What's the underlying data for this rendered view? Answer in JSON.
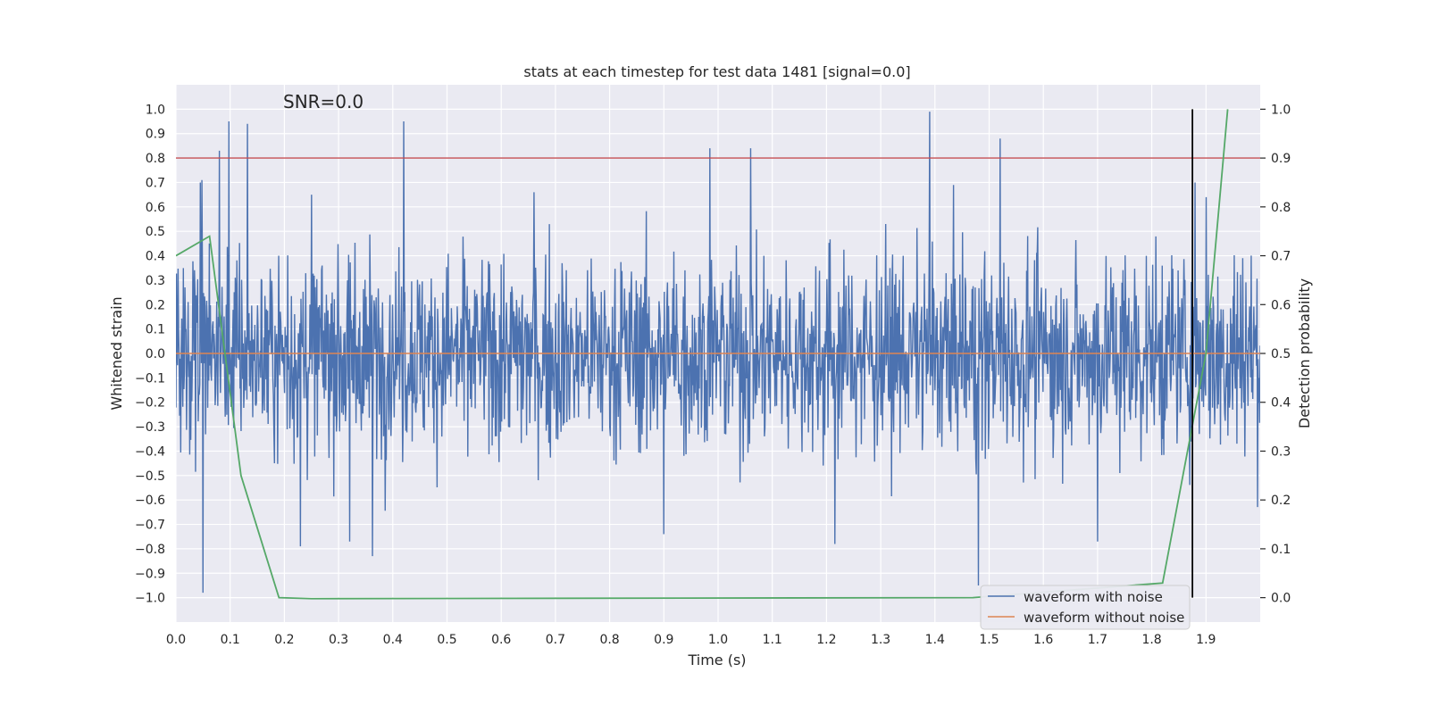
{
  "chart_data": {
    "type": "line",
    "title": "stats at each timestep for test data 1481 [signal=0.0]",
    "annotation": "SNR=0.0",
    "xlabel": "Time (s)",
    "ylabel": "Whitened strain",
    "y2label": "Detection probability",
    "xlim": [
      0.0,
      2.0
    ],
    "ylim": [
      -1.1,
      1.1
    ],
    "y2lim": [
      -0.05,
      1.05
    ],
    "x_ticks": [
      0.0,
      0.1,
      0.2,
      0.3,
      0.4,
      0.5,
      0.6,
      0.7,
      0.8,
      0.9,
      1.0,
      1.1,
      1.2,
      1.3,
      1.4,
      1.5,
      1.6,
      1.7,
      1.8,
      1.9
    ],
    "y_ticks": [
      -1.0,
      -0.9,
      -0.8,
      -0.7,
      -0.6,
      -0.5,
      -0.4,
      -0.3,
      -0.2,
      -0.1,
      0.0,
      0.1,
      0.2,
      0.3,
      0.4,
      0.5,
      0.6,
      0.7,
      0.8,
      0.9,
      1.0
    ],
    "y2_ticks": [
      0.0,
      0.1,
      0.2,
      0.3,
      0.4,
      0.5,
      0.6,
      0.7,
      0.8,
      0.9,
      1.0
    ],
    "threshold": {
      "axis": "y2",
      "value": 0.9,
      "color": "#c44e52"
    },
    "marker_line": {
      "x": 1.875,
      "y2_from": 0.0,
      "y2_to": 1.0,
      "color": "#000000"
    },
    "noise_waveform": {
      "name": "waveform with noise",
      "color": "#4c72b0",
      "samples": 2048,
      "amplitude": 0.28,
      "spikes": [
        {
          "x": 0.045,
          "y": 0.7
        },
        {
          "x": 0.048,
          "y": 0.71
        },
        {
          "x": 0.05,
          "y": -0.98
        },
        {
          "x": 0.08,
          "y": 0.83
        },
        {
          "x": 0.098,
          "y": 0.95
        },
        {
          "x": 0.132,
          "y": 0.94
        },
        {
          "x": 0.23,
          "y": -0.79
        },
        {
          "x": 0.25,
          "y": 0.65
        },
        {
          "x": 0.32,
          "y": -0.77
        },
        {
          "x": 0.362,
          "y": -0.83
        },
        {
          "x": 0.42,
          "y": 0.95
        },
        {
          "x": 0.66,
          "y": 0.66
        },
        {
          "x": 0.9,
          "y": -0.74
        },
        {
          "x": 0.985,
          "y": 0.84
        },
        {
          "x": 1.06,
          "y": 0.84
        },
        {
          "x": 1.215,
          "y": -0.78
        },
        {
          "x": 1.39,
          "y": 0.99
        },
        {
          "x": 1.48,
          "y": -0.95
        },
        {
          "x": 1.52,
          "y": 0.88
        },
        {
          "x": 1.7,
          "y": -0.77
        },
        {
          "x": 1.88,
          "y": 0.7
        },
        {
          "x": 1.9,
          "y": 0.64
        },
        {
          "x": 1.968,
          "y": 0.39
        }
      ]
    },
    "clean_waveform": {
      "name": "waveform without noise",
      "color": "#dd8452",
      "x": [
        0.0,
        2.0
      ],
      "y": [
        0.0,
        0.0
      ]
    },
    "detection_probability": {
      "color": "#55a868",
      "x": [
        0.0,
        0.062,
        0.12,
        0.19,
        0.25,
        1.47,
        1.82,
        1.9,
        1.94
      ],
      "y": [
        0.7,
        0.74,
        0.25,
        0.0,
        -0.002,
        0.0,
        0.03,
        0.5,
        1.0
      ]
    },
    "legend": {
      "position": "lower-right",
      "entries": [
        "waveform with noise",
        "waveform without noise"
      ]
    },
    "colors": {
      "axes_bg": "#eaeaf2",
      "grid": "#ffffff",
      "text": "#262626"
    }
  }
}
